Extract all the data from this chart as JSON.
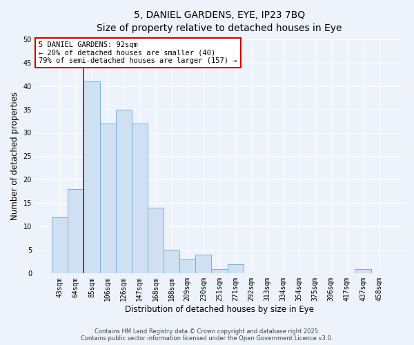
{
  "title_line1": "5, DANIEL GARDENS, EYE, IP23 7BQ",
  "title_line2": "Size of property relative to detached houses in Eye",
  "xlabel": "Distribution of detached houses by size in Eye",
  "ylabel": "Number of detached properties",
  "categories": [
    "43sqm",
    "64sqm",
    "85sqm",
    "106sqm",
    "126sqm",
    "147sqm",
    "168sqm",
    "188sqm",
    "209sqm",
    "230sqm",
    "251sqm",
    "271sqm",
    "292sqm",
    "313sqm",
    "334sqm",
    "354sqm",
    "375sqm",
    "396sqm",
    "417sqm",
    "437sqm",
    "458sqm"
  ],
  "values": [
    12,
    18,
    41,
    32,
    35,
    32,
    14,
    5,
    3,
    4,
    1,
    2,
    0,
    0,
    0,
    0,
    0,
    0,
    0,
    1,
    0
  ],
  "bar_color": "#cfe0f3",
  "bar_edge_color": "#7bafd4",
  "vline_index": 2,
  "vline_color": "#cc0000",
  "ylim": [
    0,
    50
  ],
  "yticks": [
    0,
    5,
    10,
    15,
    20,
    25,
    30,
    35,
    40,
    45,
    50
  ],
  "annotation_title": "5 DANIEL GARDENS: 92sqm",
  "annotation_line2": "← 20% of detached houses are smaller (40)",
  "annotation_line3": "79% of semi-detached houses are larger (157) →",
  "annotation_box_color": "#ffffff",
  "annotation_box_edge": "#cc0000",
  "footer_line1": "Contains HM Land Registry data © Crown copyright and database right 2025.",
  "footer_line2": "Contains public sector information licensed under the Open Government Licence v3.0.",
  "background_color": "#eef2fb",
  "grid_color": "#ffffff",
  "title_fontsize": 10,
  "subtitle_fontsize": 9,
  "axis_label_fontsize": 8.5,
  "tick_fontsize": 7,
  "annotation_fontsize": 7.5,
  "footer_fontsize": 6
}
